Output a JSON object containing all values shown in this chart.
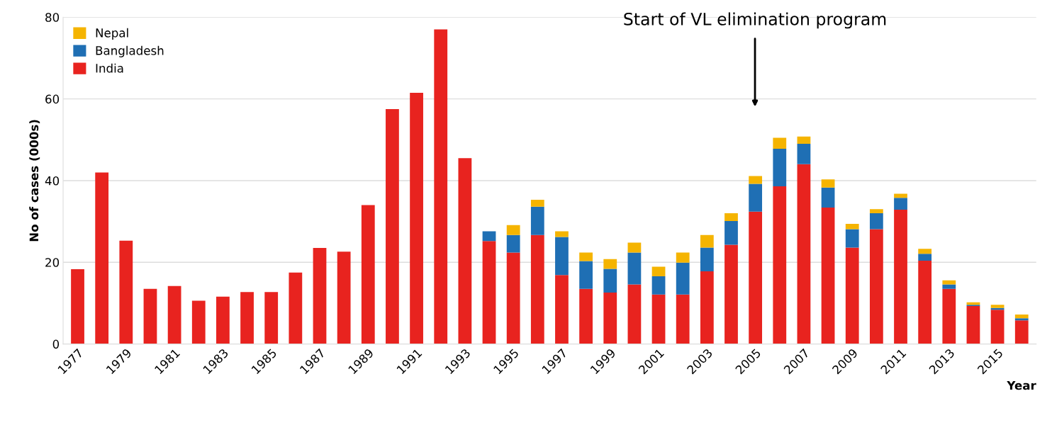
{
  "chart_data": {
    "type": "bar",
    "stacked": true,
    "ylabel": "No of cases (000s)",
    "xlabel": "Year",
    "categories": [
      "1977",
      null,
      "1979",
      null,
      "1981",
      null,
      "1983",
      null,
      "1985",
      null,
      "1987",
      null,
      "1989",
      null,
      "1991",
      null,
      "1993",
      null,
      "1995",
      null,
      "1997",
      null,
      "1999",
      null,
      "2001",
      null,
      "2003",
      null,
      "2005",
      null,
      "2007",
      null,
      "2009",
      null,
      "2011",
      null,
      "2013",
      null,
      "2015",
      null
    ],
    "series": [
      {
        "name": "India",
        "color": "#e8231f",
        "values": [
          18.3,
          42,
          25.3,
          13.5,
          14.2,
          10.6,
          11.6,
          12.7,
          12.7,
          17.5,
          23.5,
          22.6,
          34,
          57.5,
          61.5,
          77,
          45.5,
          25.2,
          22.4,
          26.7,
          16.9,
          13.5,
          12.6,
          14.6,
          12.1,
          12.1,
          17.8,
          24.3,
          32.4,
          38.6,
          44,
          33.4,
          23.6,
          28.1,
          32.9,
          20.4,
          13.5,
          9.3,
          8.4,
          5.8
        ]
      },
      {
        "name": "Bangladesh",
        "color": "#1f6fb4",
        "values": [
          0,
          0,
          0,
          0,
          0,
          0,
          0,
          0,
          0,
          0,
          0,
          0,
          0,
          0,
          0,
          0,
          0,
          2.4,
          4.3,
          6.9,
          9.3,
          6.8,
          5.8,
          7.8,
          4.5,
          7.8,
          5.8,
          5.8,
          6.8,
          9.2,
          5,
          4.9,
          4.5,
          3.9,
          2.9,
          1.7,
          1.1,
          0.3,
          0.4,
          0.5
        ]
      },
      {
        "name": "Nepal",
        "color": "#f5b400",
        "values": [
          0,
          0,
          0,
          0,
          0,
          0,
          0,
          0,
          0,
          0,
          0,
          0,
          0,
          0,
          0,
          0,
          0,
          0,
          2.4,
          1.7,
          1.4,
          2.1,
          2.4,
          2.4,
          2.3,
          2.5,
          3.1,
          1.9,
          1.9,
          2.7,
          1.8,
          2,
          1.3,
          1,
          1,
          1.2,
          1,
          0.6,
          0.8,
          0.9
        ]
      }
    ],
    "ylim": [
      0,
      80
    ],
    "yticks": [
      0,
      20,
      40,
      60,
      80
    ],
    "grid": "y",
    "legend": "top left",
    "annotations": [
      "Start of VL elimination program"
    ]
  }
}
